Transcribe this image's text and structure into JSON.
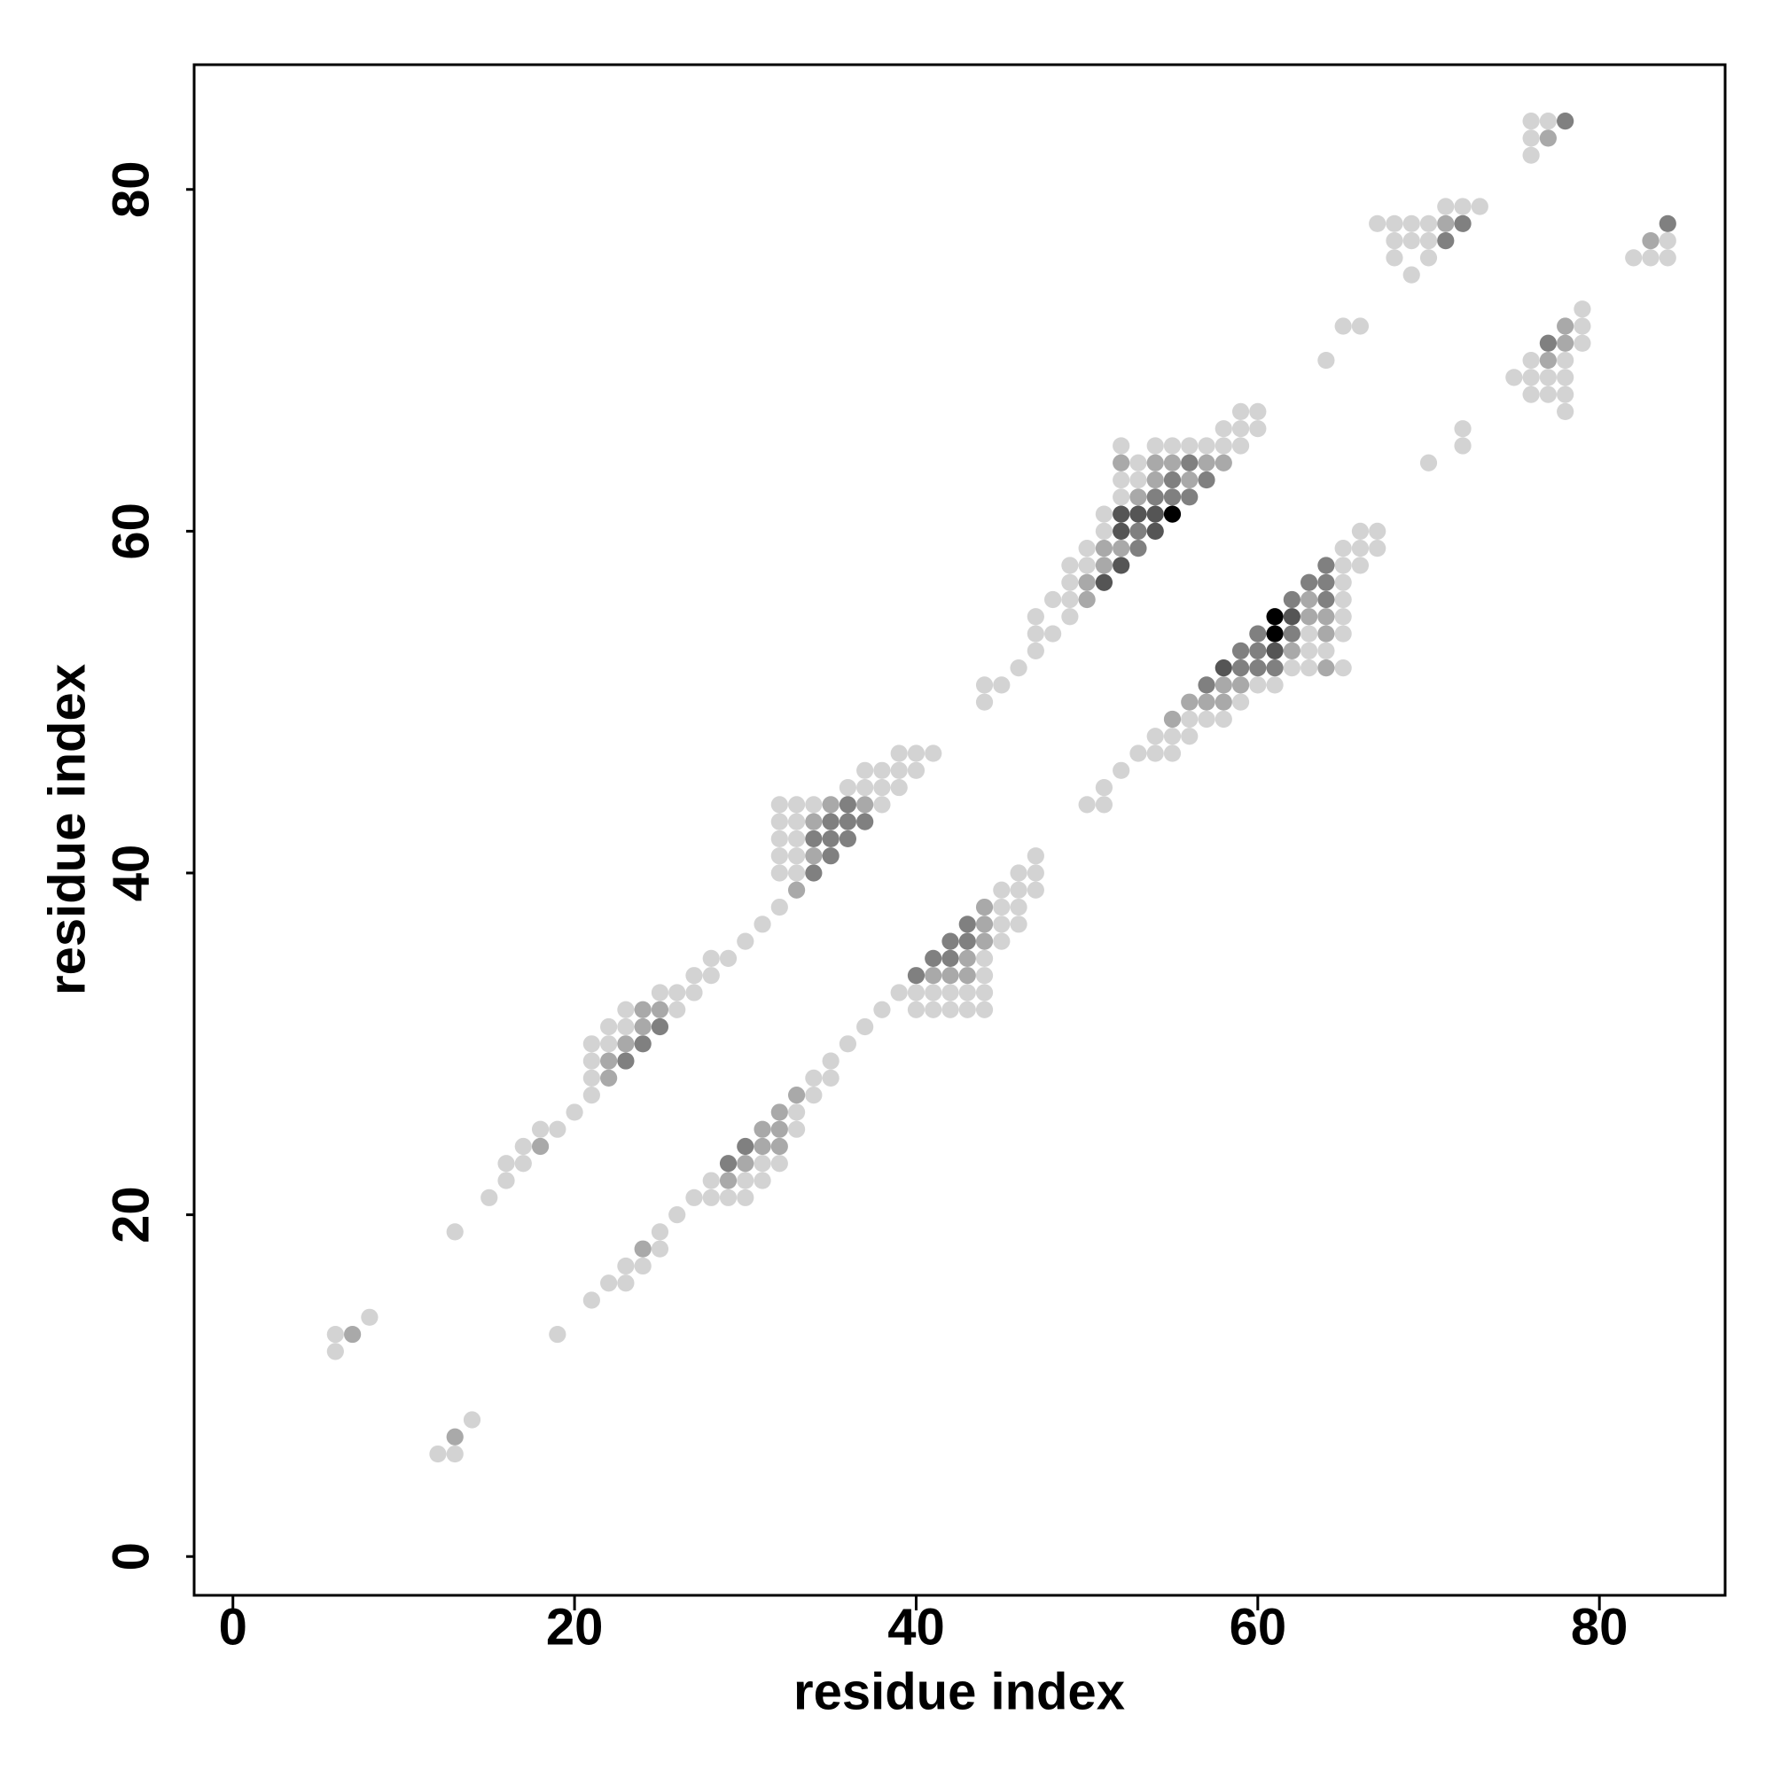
{
  "chart_data": {
    "type": "scatter",
    "xlabel": "residue index",
    "ylabel": "residue index",
    "xlim": [
      -2.27,
      87.36
    ],
    "ylim": [
      -2.27,
      87.3
    ],
    "xticks": [
      0,
      20,
      40,
      60,
      80
    ],
    "yticks": [
      0,
      20,
      40,
      60,
      80
    ],
    "series": [
      {
        "color": "#d3d3d3",
        "x": [
          76,
          77,
          76,
          76,
          71,
          72,
          73,
          67,
          68,
          69,
          70,
          68,
          69,
          70,
          84,
          68,
          70,
          82,
          83,
          84,
          69,
          79,
          65,
          66,
          79,
          79,
          64,
          76,
          78,
          75,
          76,
          77,
          78,
          76,
          77,
          78,
          78,
          59,
          60,
          58,
          59,
          60,
          72,
          52,
          54,
          55,
          56,
          57,
          58,
          59,
          72,
          53,
          70,
          52,
          53,
          52,
          51,
          51,
          66,
          67,
          50,
          65,
          66,
          67,
          49,
          50,
          65,
          66,
          49,
          65,
          48,
          49,
          65,
          47,
          49,
          65,
          47,
          48,
          63,
          65,
          47,
          63,
          64,
          46,
          62,
          63,
          65,
          44,
          45,
          60,
          61,
          44,
          59,
          56,
          57,
          58,
          54,
          55,
          56,
          39,
          40,
          41,
          53,
          54,
          55,
          37,
          38,
          39,
          40,
          52,
          36,
          37,
          38,
          39,
          51,
          32,
          33,
          34,
          38,
          50,
          51,
          32,
          33,
          32,
          33,
          32,
          33,
          47,
          32,
          33,
          46,
          47,
          45,
          46,
          47,
          32,
          45,
          46,
          31,
          45,
          46,
          30,
          45,
          28,
          29,
          44,
          27,
          28,
          44,
          25,
          26,
          27,
          39,
          40,
          41,
          42,
          43,
          44,
          23,
          26,
          38,
          40,
          41,
          42,
          43,
          44,
          22,
          23,
          37,
          21,
          22,
          36,
          21,
          35,
          21,
          34,
          35,
          21,
          34,
          20,
          33,
          18,
          19,
          33,
          17,
          16,
          17,
          31,
          32,
          16,
          28,
          30,
          31,
          15,
          27,
          28,
          29,
          30,
          26,
          13,
          25,
          25,
          23,
          24,
          22,
          23,
          21,
          8,
          6,
          19,
          6,
          14,
          12,
          13
        ],
        "y": [
          84,
          84,
          83,
          82,
          79,
          79,
          79,
          78,
          78,
          78,
          78,
          77,
          77,
          77,
          77,
          76,
          76,
          76,
          76,
          76,
          75,
          73,
          72,
          72,
          72,
          71,
          70,
          70,
          70,
          69,
          69,
          69,
          69,
          68,
          68,
          68,
          67,
          67,
          67,
          66,
          66,
          66,
          66,
          65,
          65,
          65,
          65,
          65,
          65,
          65,
          65,
          64,
          64,
          63,
          63,
          62,
          61,
          60,
          60,
          60,
          59,
          59,
          59,
          59,
          58,
          58,
          58,
          58,
          57,
          57,
          56,
          56,
          56,
          55,
          55,
          55,
          54,
          54,
          54,
          54,
          53,
          53,
          53,
          52,
          52,
          52,
          52,
          51,
          51,
          51,
          51,
          50,
          50,
          49,
          49,
          49,
          48,
          48,
          48,
          47,
          47,
          47,
          47,
          47,
          47,
          46,
          46,
          46,
          46,
          46,
          45,
          45,
          45,
          45,
          45,
          44,
          44,
          44,
          44,
          44,
          44,
          43,
          43,
          42,
          42,
          41,
          41,
          41,
          40,
          40,
          40,
          40,
          39,
          39,
          39,
          38,
          38,
          38,
          37,
          37,
          37,
          36,
          36,
          35,
          35,
          35,
          34,
          34,
          34,
          33,
          33,
          33,
          33,
          33,
          33,
          33,
          33,
          33,
          32,
          32,
          32,
          32,
          32,
          32,
          32,
          32,
          31,
          31,
          31,
          30,
          30,
          30,
          29,
          29,
          28,
          28,
          28,
          27,
          27,
          26,
          26,
          25,
          25,
          25,
          24,
          23,
          23,
          23,
          23,
          22,
          22,
          22,
          22,
          21,
          21,
          21,
          21,
          21,
          20,
          19,
          19,
          18,
          17,
          17,
          16,
          16,
          15,
          14,
          13,
          13,
          12,
          8,
          6,
          6
        ]
      },
      {
        "color": "#a9a9a9",
        "x": [
          77,
          71,
          83,
          78,
          78,
          77,
          52,
          54,
          55,
          57,
          58,
          54,
          56,
          53,
          51,
          52,
          51,
          50,
          50,
          63,
          63,
          64,
          64,
          62,
          64,
          58,
          59,
          56,
          57,
          58,
          55,
          35,
          37,
          34,
          34,
          33,
          44,
          44,
          44,
          43,
          41,
          42,
          43,
          24,
          25,
          24,
          23,
          22,
          22,
          33,
          32,
          31,
          32,
          18,
          31,
          32,
          30,
          29,
          24,
          7,
          13
        ],
        "y": [
          83,
          78,
          77,
          72,
          71,
          70,
          64,
          64,
          64,
          64,
          64,
          63,
          63,
          62,
          59,
          59,
          58,
          57,
          56,
          56,
          55,
          55,
          54,
          53,
          52,
          51,
          51,
          50,
          50,
          50,
          49,
          44,
          44,
          43,
          41,
          39,
          38,
          37,
          36,
          35,
          34,
          34,
          34,
          32,
          32,
          31,
          30,
          29,
          28,
          27,
          26,
          25,
          25,
          24,
          24,
          24,
          23,
          22,
          18,
          13,
          7
        ]
      },
      {
        "color": "#808080",
        "x": [
          78,
          72,
          84,
          71,
          77,
          56,
          55,
          57,
          54,
          55,
          56,
          53,
          53,
          64,
          63,
          64,
          62,
          64,
          60,
          62,
          59,
          60,
          59,
          60,
          61,
          57,
          36,
          35,
          36,
          37,
          34,
          35,
          36,
          35,
          34,
          43,
          42,
          43,
          41,
          42,
          40,
          25,
          24,
          23,
          30,
          29
        ],
        "y": [
          84,
          78,
          78,
          77,
          71,
          64,
          63,
          63,
          62,
          62,
          62,
          60,
          59,
          58,
          57,
          57,
          56,
          56,
          54,
          54,
          53,
          53,
          52,
          52,
          52,
          51,
          44,
          43,
          43,
          43,
          42,
          42,
          42,
          41,
          40,
          37,
          36,
          36,
          35,
          35,
          34,
          31,
          30,
          29,
          24,
          23
        ]
      },
      {
        "color": "#555555",
        "x": [
          52,
          53,
          54,
          52,
          54,
          52,
          51,
          62,
          61,
          58
        ],
        "y": [
          61,
          61,
          61,
          60,
          60,
          58,
          57,
          55,
          53,
          52
        ]
      },
      {
        "color": "#000000",
        "x": [
          55,
          61,
          61
        ],
        "y": [
          61,
          55,
          54
        ]
      }
    ]
  }
}
